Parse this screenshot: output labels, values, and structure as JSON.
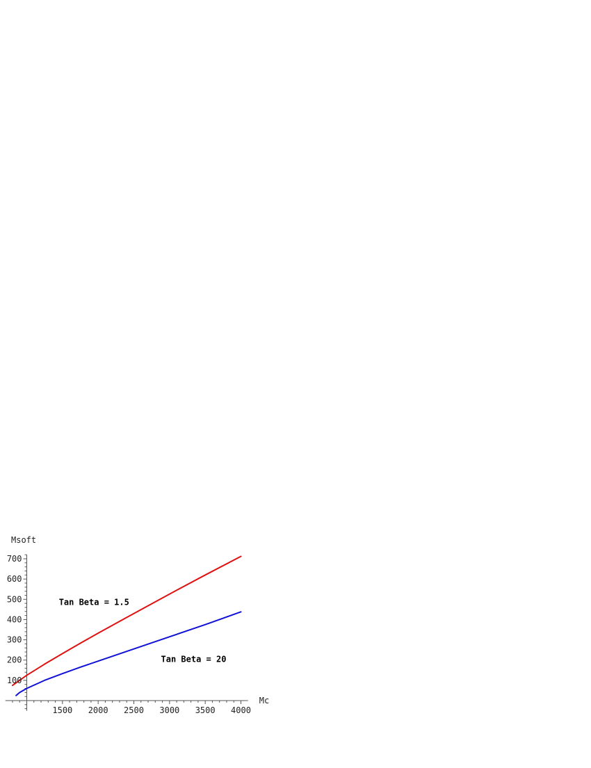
{
  "chart_data": {
    "type": "line",
    "xlabel": "Mc",
    "ylabel": "Msoft",
    "x_ticks": [
      1500,
      2000,
      2500,
      3000,
      3500,
      4000
    ],
    "y_ticks": [
      100,
      200,
      300,
      400,
      500,
      600,
      700
    ],
    "xlim": [
      700,
      4100
    ],
    "ylim": [
      -50,
      720
    ],
    "axes_origin": {
      "x": 1000,
      "y": 0
    },
    "grid": false,
    "annotations": [
      {
        "text": "Tan Beta = 1.5",
        "x": 1450,
        "y": 485
      },
      {
        "text": "Tan Beta = 20",
        "x": 2880,
        "y": 205
      }
    ],
    "series": [
      {
        "color": "#e01010",
        "x": [
          800,
          1000,
          1250,
          1500,
          1750,
          2000,
          2500,
          3000,
          3500,
          4000
        ],
        "y": [
          75,
          125,
          180,
          232,
          283,
          333,
          430,
          526,
          620,
          712
        ]
      },
      {
        "color": "#1010d8",
        "x": [
          850,
          900,
          1000,
          1250,
          1500,
          1750,
          2000,
          2500,
          3000,
          3500,
          4000
        ],
        "y": [
          25,
          40,
          60,
          100,
          133,
          165,
          195,
          255,
          315,
          375,
          438
        ]
      }
    ]
  }
}
